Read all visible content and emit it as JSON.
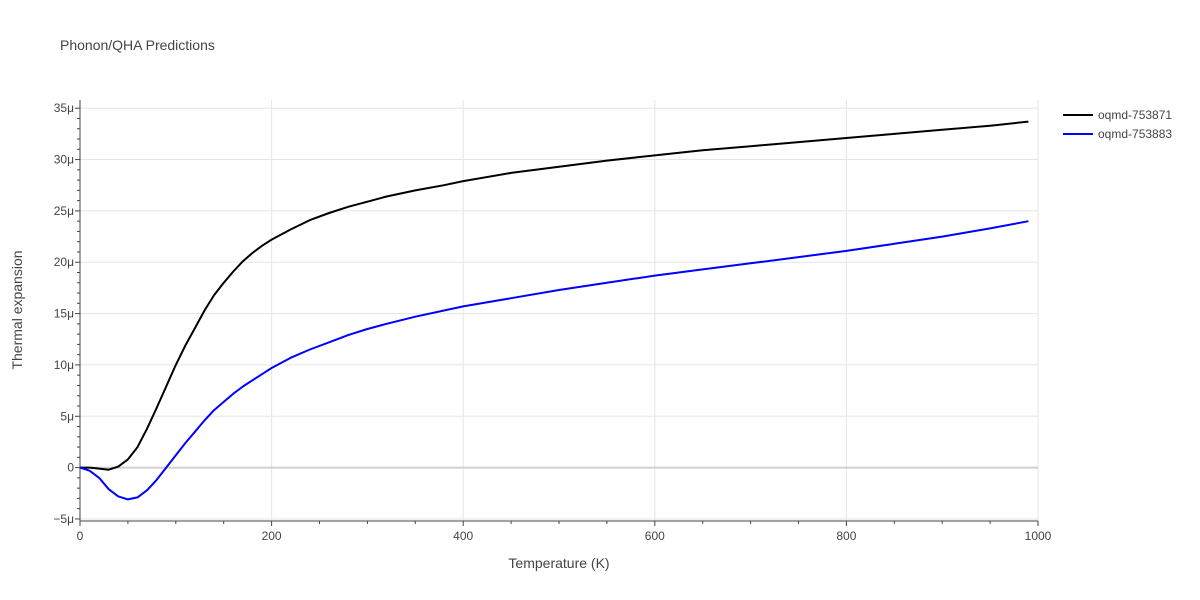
{
  "chart_data": {
    "type": "line",
    "title": "Phonon/QHA Predictions",
    "xlabel": "Temperature (K)",
    "ylabel": "Thermal expansion",
    "xlim": [
      0,
      1000
    ],
    "ylim": [
      -5.2,
      35.8
    ],
    "y_unit_scale": 1e-06,
    "x_ticks": [
      0,
      200,
      400,
      600,
      800,
      1000
    ],
    "x_tick_labels": [
      "0",
      "200",
      "400",
      "600",
      "800",
      "1000"
    ],
    "y_ticks": [
      -5,
      0,
      5,
      10,
      15,
      20,
      25,
      30,
      35
    ],
    "y_tick_labels": [
      "−5μ",
      "0",
      "5μ",
      "10μ",
      "15μ",
      "20μ",
      "25μ",
      "30μ",
      "35μ"
    ],
    "grid": true,
    "legend_position": "top-right",
    "series": [
      {
        "name": "oqmd-753871",
        "color": "#000000",
        "x": [
          0,
          10,
          20,
          30,
          40,
          50,
          60,
          70,
          80,
          90,
          100,
          110,
          120,
          130,
          140,
          150,
          160,
          170,
          180,
          190,
          200,
          220,
          240,
          260,
          280,
          300,
          320,
          350,
          380,
          400,
          450,
          500,
          550,
          600,
          650,
          700,
          750,
          800,
          850,
          900,
          950,
          990
        ],
        "y": [
          0,
          0,
          -0.1,
          -0.2,
          0.1,
          0.8,
          2.0,
          3.8,
          5.8,
          7.9,
          10.0,
          11.9,
          13.6,
          15.3,
          16.8,
          18.0,
          19.1,
          20.1,
          20.9,
          21.6,
          22.2,
          23.2,
          24.1,
          24.8,
          25.4,
          25.9,
          26.4,
          27.0,
          27.5,
          27.9,
          28.7,
          29.3,
          29.9,
          30.4,
          30.9,
          31.3,
          31.7,
          32.1,
          32.5,
          32.9,
          33.3,
          33.7
        ]
      },
      {
        "name": "oqmd-753883",
        "color": "#0000ff",
        "x": [
          0,
          10,
          20,
          30,
          40,
          50,
          60,
          70,
          80,
          90,
          100,
          110,
          120,
          130,
          140,
          150,
          160,
          170,
          180,
          190,
          200,
          220,
          240,
          260,
          280,
          300,
          320,
          350,
          380,
          400,
          450,
          500,
          550,
          600,
          650,
          700,
          750,
          800,
          850,
          900,
          950,
          990
        ],
        "y": [
          0,
          -0.3,
          -1.0,
          -2.1,
          -2.8,
          -3.1,
          -2.9,
          -2.2,
          -1.2,
          0,
          1.2,
          2.4,
          3.5,
          4.6,
          5.6,
          6.4,
          7.2,
          7.9,
          8.5,
          9.1,
          9.7,
          10.7,
          11.5,
          12.2,
          12.9,
          13.5,
          14.0,
          14.7,
          15.3,
          15.7,
          16.5,
          17.3,
          18.0,
          18.7,
          19.3,
          19.9,
          20.5,
          21.1,
          21.8,
          22.5,
          23.3,
          24.0
        ]
      }
    ]
  }
}
